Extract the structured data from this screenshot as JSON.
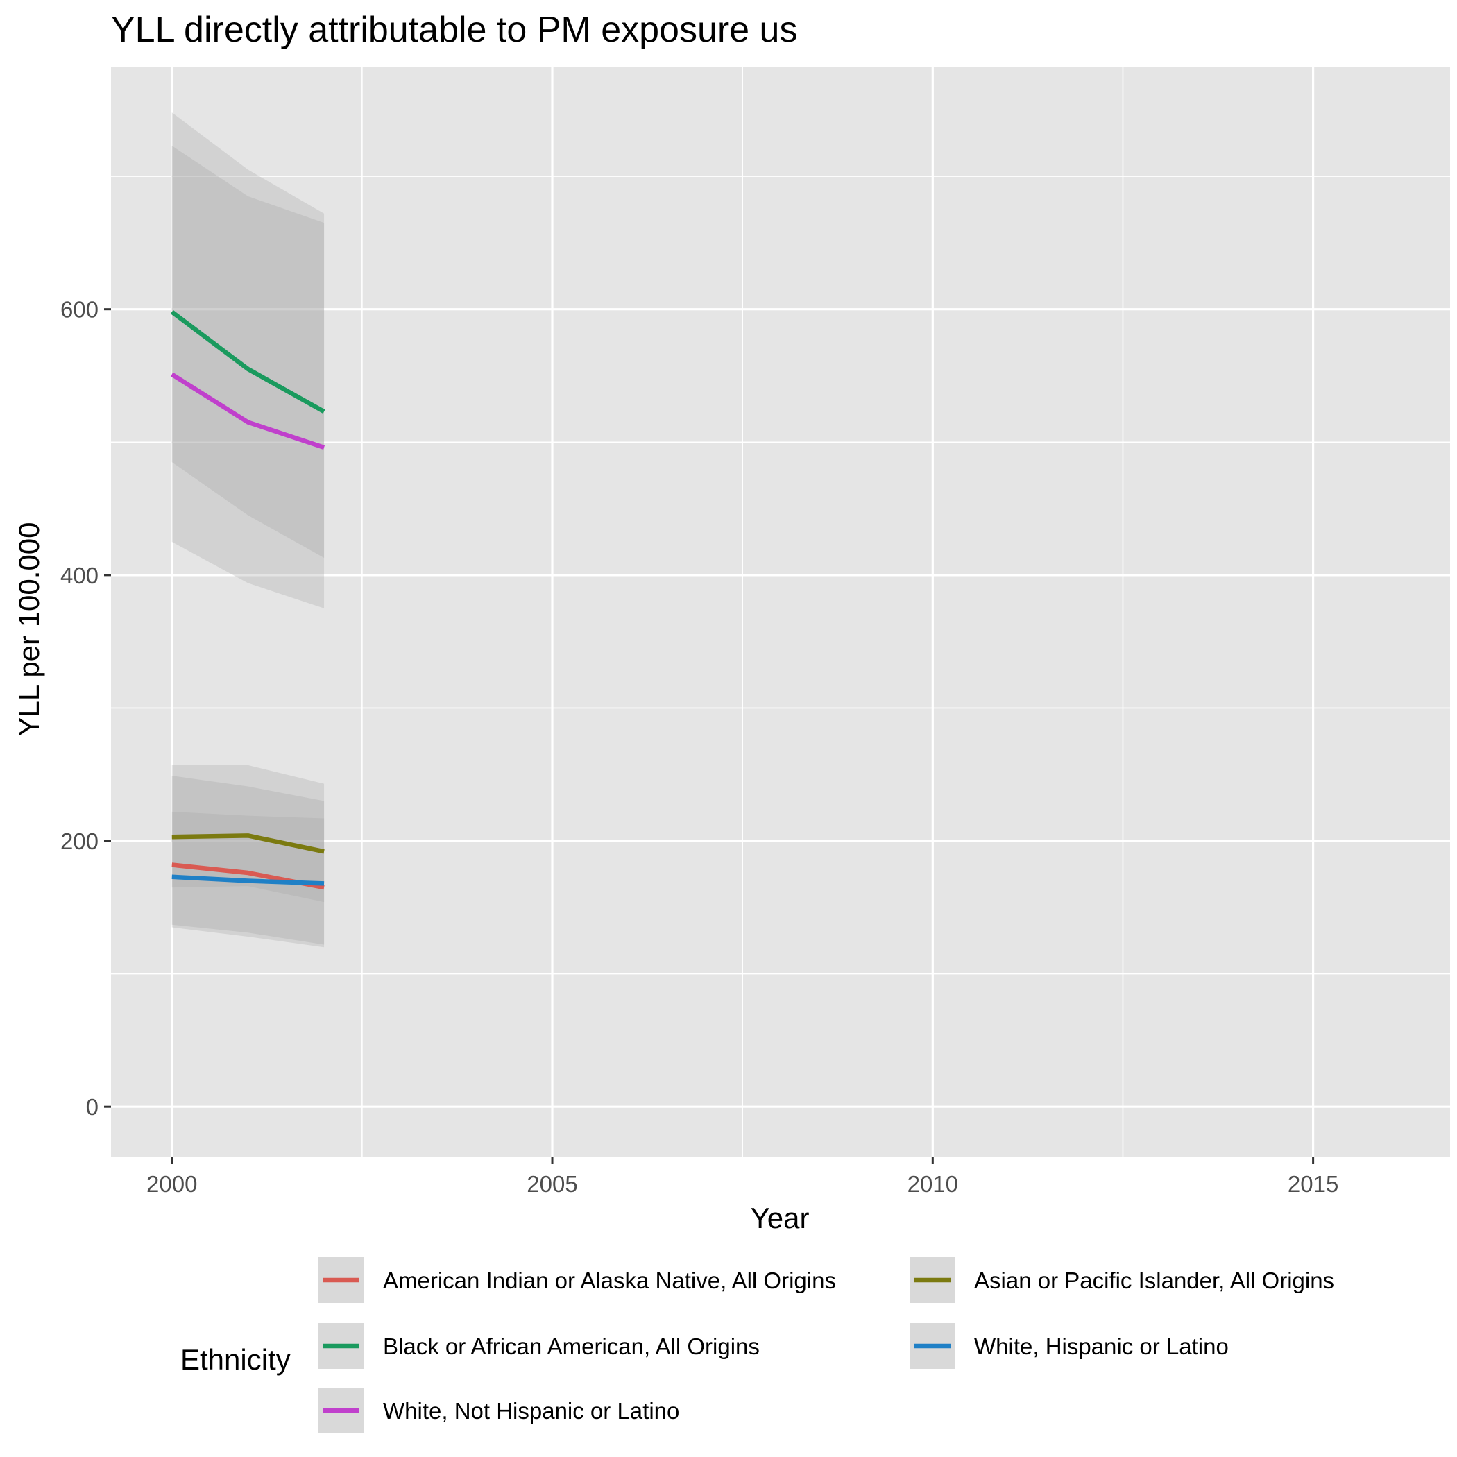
{
  "chart_data": {
    "type": "line",
    "title": "YLL directly attributable to PM exposure us",
    "xlabel": "Year",
    "ylabel": "YLL per 100.000",
    "xlim": [
      1999.2,
      2016.8
    ],
    "ylim": [
      -38,
      782
    ],
    "x_ticks": [
      2000,
      2005,
      2010,
      2015
    ],
    "x_tick_labels": [
      "2000",
      "2005",
      "2010",
      "2015"
    ],
    "y_ticks": [
      0,
      200,
      400,
      600
    ],
    "y_tick_labels": [
      "0",
      "200",
      "400",
      "600"
    ],
    "grid": true,
    "background": "#e5e5e5",
    "ribbon_color": "#a6a6a6",
    "legend": {
      "title": "Ethnicity",
      "position": "bottom",
      "layout_columns": 2
    },
    "x": [
      2000,
      2001,
      2002
    ],
    "series": [
      {
        "name": "American Indian or Alaska Native, All Origins",
        "color": "#d95a52",
        "values": [
          182,
          176,
          165
        ],
        "lower": [
          137,
          131,
          122
        ],
        "upper": [
          222,
          219,
          217
        ]
      },
      {
        "name": "Asian or Pacific Islander, All Origins",
        "color": "#7b7a10",
        "values": [
          203,
          204,
          192
        ],
        "lower": [
          165,
          166,
          154
        ],
        "upper": [
          249,
          241,
          230
        ]
      },
      {
        "name": "Black or African American, All Origins",
        "color": "#1a9a5e",
        "values": [
          598,
          555,
          523
        ],
        "lower": [
          485,
          445,
          413
        ],
        "upper": [
          723,
          685,
          665
        ]
      },
      {
        "name": "White, Hispanic or Latino",
        "color": "#1f80c6",
        "values": [
          173,
          170,
          168
        ],
        "lower": [
          135,
          128,
          120
        ],
        "upper": [
          257,
          257,
          243
        ]
      },
      {
        "name": "White, Not Hispanic or Latino",
        "color": "#c040cc",
        "values": [
          551,
          515,
          496
        ],
        "lower": [
          425,
          394,
          375
        ],
        "upper": [
          748,
          705,
          672
        ]
      }
    ]
  }
}
